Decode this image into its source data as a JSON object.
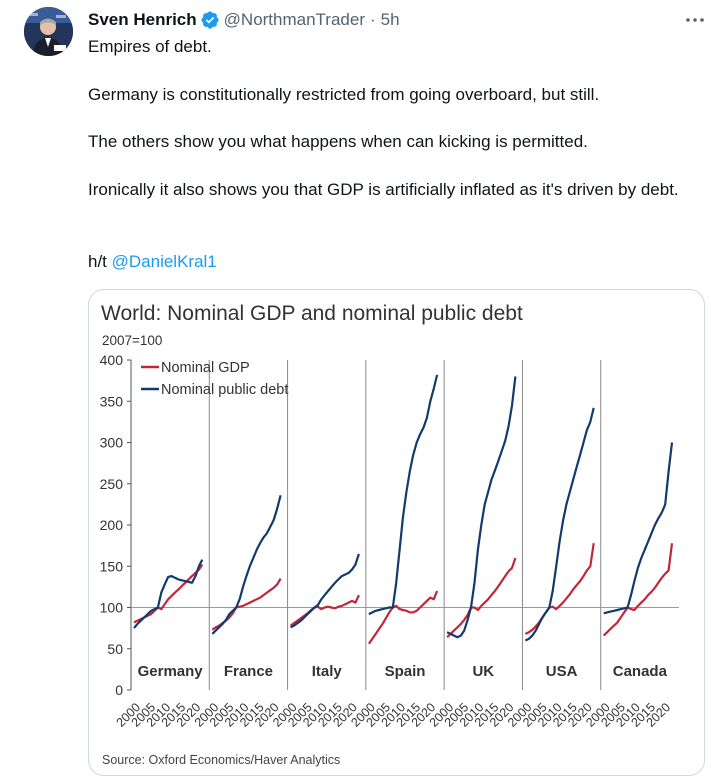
{
  "tweet": {
    "author_name": "Sven Henrich",
    "handle": "@NorthmanTrader",
    "separator": "·",
    "time": "5h",
    "paragraphs": [
      "Empires of debt.",
      "Germany is constitutionally restricted from going overboard, but still.",
      "The others show you what happens when can kicking is permitted.",
      "Ironically it also shows you that GDP is artificially inflated as it's driven by debt."
    ],
    "ht_prefix": "h/t ",
    "ht_mention": "@DanielKral1"
  },
  "colors": {
    "gdp": "#c0283a",
    "debt": "#123b6b",
    "link": "#1d9bf0"
  },
  "chart_data": {
    "type": "line",
    "title": "World: Nominal GDP and nominal public debt",
    "subtitle": "2007=100",
    "source": "Source: Oxford Economics/Haver Analytics",
    "ylim": [
      0,
      400
    ],
    "yticks": [
      "0",
      "50",
      "100",
      "150",
      "200",
      "250",
      "300",
      "350",
      "400"
    ],
    "xticks": [
      "2000",
      "2005",
      "2010",
      "2015",
      "2020"
    ],
    "legend": [
      "Nominal GDP",
      "Nominal public debt"
    ],
    "panels": [
      {
        "name": "Germany",
        "gdp": [
          82,
          84,
          86,
          88,
          90,
          92,
          96,
          100,
          98,
          104,
          110,
          114,
          118,
          122,
          126,
          130,
          134,
          138,
          142,
          146,
          152
        ],
        "debt": [
          75,
          80,
          84,
          88,
          92,
          96,
          98,
          100,
          118,
          128,
          137,
          138,
          136,
          134,
          133,
          132,
          131,
          130,
          138,
          150,
          158
        ]
      },
      {
        "name": "France",
        "gdp": [
          73,
          76,
          78,
          81,
          84,
          88,
          93,
          100,
          101,
          102,
          104,
          106,
          108,
          110,
          112,
          115,
          118,
          121,
          124,
          128,
          135
        ],
        "debt": [
          68,
          72,
          76,
          80,
          85,
          92,
          96,
          100,
          110,
          125,
          138,
          150,
          160,
          170,
          178,
          185,
          190,
          198,
          206,
          220,
          236
        ]
      },
      {
        "name": "Italy",
        "gdp": [
          78,
          81,
          84,
          87,
          90,
          93,
          97,
          100,
          101,
          98,
          100,
          101,
          100,
          99,
          101,
          102,
          104,
          106,
          108,
          106,
          115
        ],
        "debt": [
          76,
          78,
          81,
          84,
          88,
          92,
          96,
          100,
          103,
          110,
          115,
          120,
          125,
          130,
          134,
          138,
          140,
          142,
          146,
          152,
          165
        ]
      },
      {
        "name": "Spain",
        "gdp": [
          56,
          62,
          68,
          74,
          80,
          87,
          94,
          100,
          102,
          98,
          97,
          96,
          94,
          94,
          96,
          100,
          104,
          108,
          112,
          110,
          120
        ],
        "debt": [
          92,
          94,
          96,
          97,
          98,
          99,
          100,
          100,
          130,
          170,
          210,
          240,
          265,
          285,
          300,
          310,
          318,
          330,
          350,
          365,
          382
        ]
      },
      {
        "name": "UK",
        "gdp": [
          64,
          68,
          72,
          76,
          80,
          85,
          91,
          100,
          100,
          97,
          102,
          106,
          110,
          115,
          120,
          126,
          132,
          138,
          144,
          148,
          160
        ],
        "debt": [
          70,
          68,
          66,
          64,
          66,
          72,
          85,
          100,
          130,
          170,
          200,
          225,
          240,
          255,
          266,
          278,
          290,
          302,
          320,
          345,
          380
        ]
      },
      {
        "name": "USA",
        "gdp": [
          68,
          70,
          73,
          77,
          82,
          88,
          94,
          100,
          101,
          98,
          102,
          106,
          111,
          116,
          122,
          127,
          132,
          138,
          145,
          150,
          178
        ],
        "debt": [
          60,
          62,
          66,
          72,
          80,
          88,
          94,
          100,
          120,
          150,
          180,
          205,
          225,
          240,
          255,
          270,
          285,
          300,
          315,
          325,
          342
        ]
      },
      {
        "name": "Canada",
        "gdp": [
          66,
          70,
          74,
          78,
          82,
          88,
          94,
          100,
          98,
          97,
          102,
          106,
          110,
          115,
          119,
          124,
          130,
          136,
          141,
          145,
          178
        ],
        "debt": [
          93,
          94,
          95,
          96,
          97,
          98,
          99,
          100,
          115,
          132,
          148,
          160,
          170,
          180,
          190,
          200,
          208,
          215,
          225,
          265,
          300
        ]
      }
    ]
  }
}
